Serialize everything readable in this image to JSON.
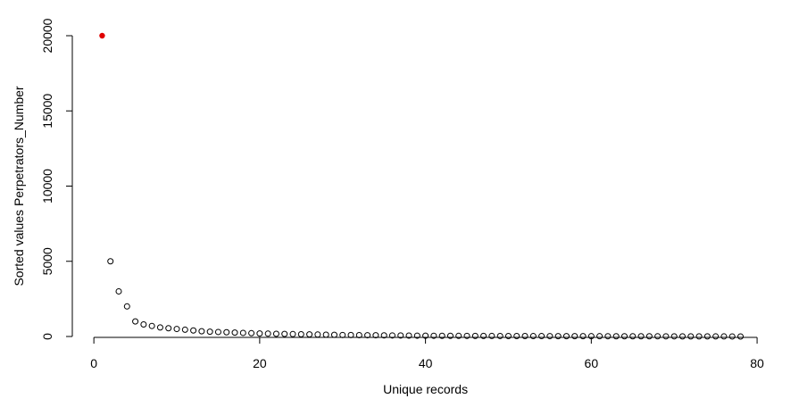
{
  "chart_data": {
    "type": "scatter",
    "title": "",
    "xlabel": "Unique records",
    "ylabel": "Sorted values Perpetrators_Number",
    "xlim": [
      -4,
      81.5
    ],
    "ylim": [
      0,
      20000
    ],
    "x_ticks": [
      0,
      20,
      40,
      60,
      80
    ],
    "x_tick_labels": [
      "0",
      "20",
      "40",
      "60",
      "80"
    ],
    "y_ticks": [
      0,
      5000,
      10000,
      15000,
      20000
    ],
    "y_tick_labels": [
      "0",
      "5000",
      "10000",
      "15000",
      "20000"
    ],
    "grid": false,
    "highlight_color": "#e00000",
    "point_color": "#000000",
    "x": [
      1,
      2,
      3,
      4,
      5,
      6,
      7,
      8,
      9,
      10,
      11,
      12,
      13,
      14,
      15,
      16,
      17,
      18,
      19,
      20,
      21,
      22,
      23,
      24,
      25,
      26,
      27,
      28,
      29,
      30,
      31,
      32,
      33,
      34,
      35,
      36,
      37,
      38,
      39,
      40,
      41,
      42,
      43,
      44,
      45,
      46,
      47,
      48,
      49,
      50,
      51,
      52,
      53,
      54,
      55,
      56,
      57,
      58,
      59,
      60,
      61,
      62,
      63,
      64,
      65,
      66,
      67,
      68,
      69,
      70,
      71,
      72,
      73,
      74,
      75,
      76,
      77,
      78
    ],
    "y": [
      20000,
      5000,
      3000,
      2000,
      1000,
      800,
      700,
      600,
      550,
      500,
      450,
      400,
      350,
      320,
      300,
      280,
      260,
      240,
      220,
      200,
      190,
      180,
      170,
      160,
      150,
      140,
      130,
      120,
      110,
      100,
      95,
      90,
      85,
      80,
      75,
      70,
      65,
      60,
      55,
      50,
      48,
      46,
      44,
      42,
      40,
      38,
      36,
      34,
      32,
      30,
      29,
      28,
      27,
      26,
      25,
      24,
      23,
      22,
      21,
      20,
      19,
      18,
      17,
      16,
      15,
      14,
      13,
      12,
      11,
      10,
      9,
      8,
      7,
      6,
      5,
      4,
      3,
      2
    ],
    "highlight_index": 0
  }
}
